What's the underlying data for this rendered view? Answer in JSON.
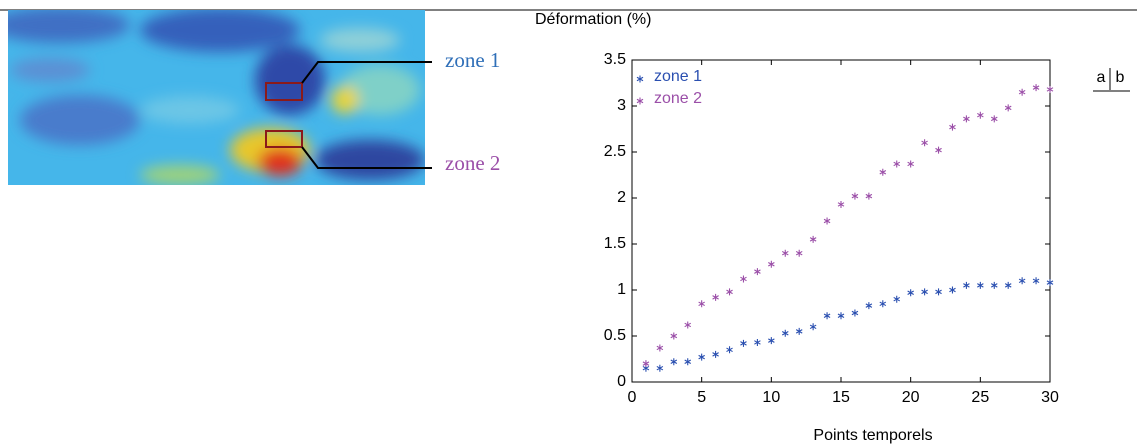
{
  "chart_data": {
    "type": "scatter",
    "y_label": "Déformation (%)",
    "x_label": "Points temporels",
    "annotations": [
      "zone 1",
      "zone 2"
    ],
    "panel_labels": [
      "a",
      "b"
    ],
    "x": [
      1,
      2,
      3,
      4,
      5,
      6,
      7,
      8,
      9,
      10,
      11,
      12,
      13,
      14,
      15,
      16,
      17,
      18,
      19,
      20,
      21,
      22,
      23,
      24,
      25,
      26,
      27,
      28,
      29,
      30
    ],
    "series": [
      {
        "name": "zone 1",
        "color": "#2a4fb0",
        "values": [
          0.15,
          0.15,
          0.22,
          0.22,
          0.27,
          0.3,
          0.35,
          0.42,
          0.43,
          0.45,
          0.53,
          0.55,
          0.6,
          0.72,
          0.72,
          0.75,
          0.83,
          0.85,
          0.9,
          0.97,
          0.98,
          0.98,
          1.0,
          1.05,
          1.05,
          1.05,
          1.05,
          1.1,
          1.1,
          1.08
        ]
      },
      {
        "name": "zone 2",
        "color": "#9b4fa8",
        "values": [
          0.2,
          0.37,
          0.5,
          0.62,
          0.85,
          0.92,
          0.98,
          1.12,
          1.2,
          1.28,
          1.4,
          1.4,
          1.55,
          1.75,
          1.93,
          2.02,
          2.02,
          2.28,
          2.37,
          2.37,
          2.6,
          2.52,
          2.77,
          2.86,
          2.9,
          2.86,
          2.98,
          3.15,
          3.2,
          3.18
        ]
      }
    ],
    "xlim": [
      0,
      30
    ],
    "xticks": [
      0,
      5,
      10,
      15,
      20,
      25,
      30
    ],
    "ylim": [
      0,
      3.5
    ],
    "yticks": [
      0,
      0.5,
      1,
      1.5,
      2,
      2.5,
      3,
      3.5
    ],
    "grid": false,
    "legend": "upper left"
  }
}
